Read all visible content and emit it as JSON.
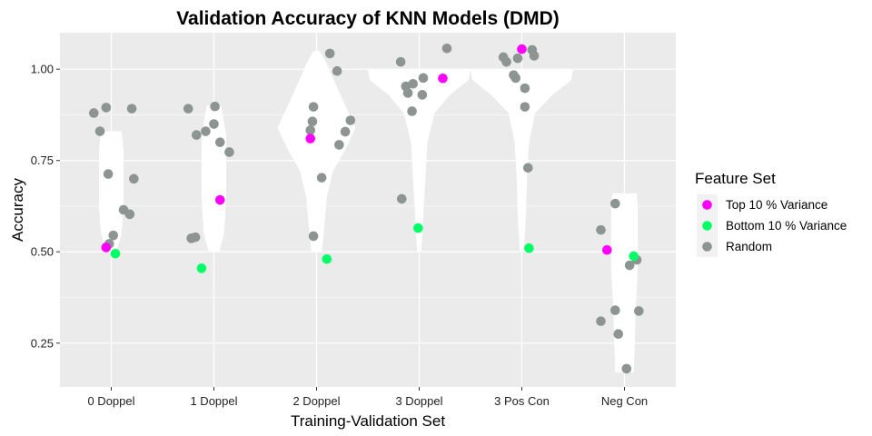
{
  "chart_data": {
    "type": "violin-scatter",
    "title": "Validation Accuracy of KNN Models (DMD)",
    "xlabel": "Training-Validation Set",
    "ylabel": "Accuracy",
    "categories": [
      "0 Doppel",
      "1 Doppel",
      "2 Doppel",
      "3 Doppel",
      "3 Pos Con",
      "Neg Con"
    ],
    "ylim": [
      0.13,
      1.1
    ],
    "yticks": [
      0.25,
      0.5,
      0.75,
      1.0
    ],
    "ytick_labels": [
      "0.25",
      "0.50",
      "0.75",
      "1.00"
    ],
    "grid": true,
    "legend": {
      "title": "Feature Set",
      "position": "right",
      "entries": [
        {
          "label": "Top 10 % Variance",
          "color": "#FF00FF"
        },
        {
          "label": "Bottom 10 % Variance",
          "color": "#00FF66"
        },
        {
          "label": "Random",
          "color": "#8C9591"
        }
      ]
    },
    "violins": [
      {
        "category": "0 Doppel",
        "profile": [
          [
            0.5,
            0.05
          ],
          [
            0.55,
            0.1
          ],
          [
            0.62,
            0.12
          ],
          [
            0.7,
            0.12
          ],
          [
            0.78,
            0.12
          ],
          [
            0.83,
            0.1
          ]
        ]
      },
      {
        "category": "1 Doppel",
        "profile": [
          [
            0.5,
            0.05
          ],
          [
            0.55,
            0.1
          ],
          [
            0.65,
            0.12
          ],
          [
            0.75,
            0.12
          ],
          [
            0.82,
            0.12
          ],
          [
            0.9,
            0.07
          ]
        ]
      },
      {
        "category": "2 Doppel",
        "profile": [
          [
            0.5,
            0.05
          ],
          [
            0.55,
            0.07
          ],
          [
            0.65,
            0.1
          ],
          [
            0.72,
            0.16
          ],
          [
            0.78,
            0.28
          ],
          [
            0.84,
            0.38
          ],
          [
            0.9,
            0.28
          ],
          [
            0.95,
            0.2
          ],
          [
            1.02,
            0.09
          ],
          [
            1.05,
            0.03
          ]
        ]
      },
      {
        "category": "3 Doppel",
        "profile": [
          [
            0.5,
            0.02
          ],
          [
            0.6,
            0.04
          ],
          [
            0.7,
            0.06
          ],
          [
            0.8,
            0.08
          ],
          [
            0.88,
            0.15
          ],
          [
            0.93,
            0.3
          ],
          [
            0.97,
            0.48
          ],
          [
            1.0,
            0.5
          ]
        ]
      },
      {
        "category": "3 Pos Con",
        "profile": [
          [
            0.5,
            0.02
          ],
          [
            0.6,
            0.04
          ],
          [
            0.7,
            0.05
          ],
          [
            0.8,
            0.07
          ],
          [
            0.88,
            0.13
          ],
          [
            0.93,
            0.3
          ],
          [
            0.97,
            0.48
          ],
          [
            1.0,
            0.5
          ]
        ]
      },
      {
        "category": "Neg Con",
        "profile": [
          [
            0.17,
            0.09
          ],
          [
            0.25,
            0.1
          ],
          [
            0.35,
            0.11
          ],
          [
            0.45,
            0.13
          ],
          [
            0.55,
            0.13
          ],
          [
            0.62,
            0.13
          ],
          [
            0.66,
            0.12
          ]
        ]
      }
    ],
    "series": [
      {
        "name": "Random",
        "points": [
          {
            "category": "0 Doppel",
            "x_offset": -0.17,
            "y": 0.88
          },
          {
            "category": "0 Doppel",
            "x_offset": -0.11,
            "y": 0.83
          },
          {
            "category": "0 Doppel",
            "x_offset": -0.05,
            "y": 0.895
          },
          {
            "category": "0 Doppel",
            "x_offset": -0.03,
            "y": 0.713
          },
          {
            "category": "0 Doppel",
            "x_offset": 0.02,
            "y": 0.545
          },
          {
            "category": "0 Doppel",
            "x_offset": -0.02,
            "y": 0.522
          },
          {
            "category": "0 Doppel",
            "x_offset": 0.12,
            "y": 0.615
          },
          {
            "category": "0 Doppel",
            "x_offset": 0.18,
            "y": 0.603
          },
          {
            "category": "0 Doppel",
            "x_offset": 0.2,
            "y": 0.892
          },
          {
            "category": "0 Doppel",
            "x_offset": 0.22,
            "y": 0.7
          },
          {
            "category": "1 Doppel",
            "x_offset": -0.25,
            "y": 0.892
          },
          {
            "category": "1 Doppel",
            "x_offset": -0.17,
            "y": 0.82
          },
          {
            "category": "1 Doppel",
            "x_offset": -0.22,
            "y": 0.537
          },
          {
            "category": "1 Doppel",
            "x_offset": -0.18,
            "y": 0.54
          },
          {
            "category": "1 Doppel",
            "x_offset": -0.08,
            "y": 0.83
          },
          {
            "category": "1 Doppel",
            "x_offset": 0.0,
            "y": 0.85
          },
          {
            "category": "1 Doppel",
            "x_offset": 0.01,
            "y": 0.898
          },
          {
            "category": "1 Doppel",
            "x_offset": 0.06,
            "y": 0.8
          },
          {
            "category": "1 Doppel",
            "x_offset": 0.15,
            "y": 0.773
          },
          {
            "category": "2 Doppel",
            "x_offset": -0.06,
            "y": 0.833
          },
          {
            "category": "2 Doppel",
            "x_offset": -0.04,
            "y": 0.857
          },
          {
            "category": "2 Doppel",
            "x_offset": -0.03,
            "y": 0.897
          },
          {
            "category": "2 Doppel",
            "x_offset": -0.03,
            "y": 0.543
          },
          {
            "category": "2 Doppel",
            "x_offset": 0.13,
            "y": 1.043
          },
          {
            "category": "2 Doppel",
            "x_offset": 0.05,
            "y": 0.703
          },
          {
            "category": "2 Doppel",
            "x_offset": 0.2,
            "y": 0.995
          },
          {
            "category": "2 Doppel",
            "x_offset": 0.22,
            "y": 0.793
          },
          {
            "category": "2 Doppel",
            "x_offset": 0.28,
            "y": 0.829
          },
          {
            "category": "2 Doppel",
            "x_offset": 0.33,
            "y": 0.86
          },
          {
            "category": "3 Doppel",
            "x_offset": -0.18,
            "y": 1.02
          },
          {
            "category": "3 Doppel",
            "x_offset": -0.13,
            "y": 0.953
          },
          {
            "category": "3 Doppel",
            "x_offset": -0.11,
            "y": 0.935
          },
          {
            "category": "3 Doppel",
            "x_offset": -0.06,
            "y": 0.96
          },
          {
            "category": "3 Doppel",
            "x_offset": -0.07,
            "y": 0.885
          },
          {
            "category": "3 Doppel",
            "x_offset": 0.03,
            "y": 0.93
          },
          {
            "category": "3 Doppel",
            "x_offset": 0.04,
            "y": 0.976
          },
          {
            "category": "3 Doppel",
            "x_offset": -0.17,
            "y": 0.645
          },
          {
            "category": "3 Doppel",
            "x_offset": 0.27,
            "y": 1.057
          },
          {
            "category": "3 Pos Con",
            "x_offset": -0.18,
            "y": 1.033
          },
          {
            "category": "3 Pos Con",
            "x_offset": -0.15,
            "y": 1.02
          },
          {
            "category": "3 Pos Con",
            "x_offset": -0.08,
            "y": 0.984
          },
          {
            "category": "3 Pos Con",
            "x_offset": -0.06,
            "y": 0.976
          },
          {
            "category": "3 Pos Con",
            "x_offset": -0.04,
            "y": 1.03
          },
          {
            "category": "3 Pos Con",
            "x_offset": 0.03,
            "y": 0.948
          },
          {
            "category": "3 Pos Con",
            "x_offset": 0.03,
            "y": 0.897
          },
          {
            "category": "3 Pos Con",
            "x_offset": 0.06,
            "y": 0.73
          },
          {
            "category": "3 Pos Con",
            "x_offset": 0.1,
            "y": 1.053
          },
          {
            "category": "3 Pos Con",
            "x_offset": 0.12,
            "y": 1.037
          },
          {
            "category": "Neg Con",
            "x_offset": -0.23,
            "y": 0.56
          },
          {
            "category": "Neg Con",
            "x_offset": -0.23,
            "y": 0.31
          },
          {
            "category": "Neg Con",
            "x_offset": -0.09,
            "y": 0.632
          },
          {
            "category": "Neg Con",
            "x_offset": -0.09,
            "y": 0.34
          },
          {
            "category": "Neg Con",
            "x_offset": -0.06,
            "y": 0.275
          },
          {
            "category": "Neg Con",
            "x_offset": 0.05,
            "y": 0.463
          },
          {
            "category": "Neg Con",
            "x_offset": 0.12,
            "y": 0.478
          },
          {
            "category": "Neg Con",
            "x_offset": 0.14,
            "y": 0.338
          },
          {
            "category": "Neg Con",
            "x_offset": 0.02,
            "y": 0.18
          }
        ]
      },
      {
        "name": "Top 10 % Variance",
        "points": [
          {
            "category": "0 Doppel",
            "x_offset": -0.05,
            "y": 0.512
          },
          {
            "category": "1 Doppel",
            "x_offset": 0.06,
            "y": 0.642
          },
          {
            "category": "2 Doppel",
            "x_offset": -0.06,
            "y": 0.81
          },
          {
            "category": "3 Doppel",
            "x_offset": 0.23,
            "y": 0.975
          },
          {
            "category": "3 Pos Con",
            "x_offset": 0.0,
            "y": 1.055
          },
          {
            "category": "Neg Con",
            "x_offset": -0.17,
            "y": 0.505
          }
        ]
      },
      {
        "name": "Bottom 10 % Variance",
        "points": [
          {
            "category": "0 Doppel",
            "x_offset": 0.04,
            "y": 0.495
          },
          {
            "category": "1 Doppel",
            "x_offset": -0.12,
            "y": 0.455
          },
          {
            "category": "2 Doppel",
            "x_offset": 0.1,
            "y": 0.48
          },
          {
            "category": "3 Doppel",
            "x_offset": -0.01,
            "y": 0.565
          },
          {
            "category": "3 Pos Con",
            "x_offset": 0.07,
            "y": 0.51
          },
          {
            "category": "Neg Con",
            "x_offset": 0.09,
            "y": 0.488
          }
        ]
      }
    ]
  }
}
